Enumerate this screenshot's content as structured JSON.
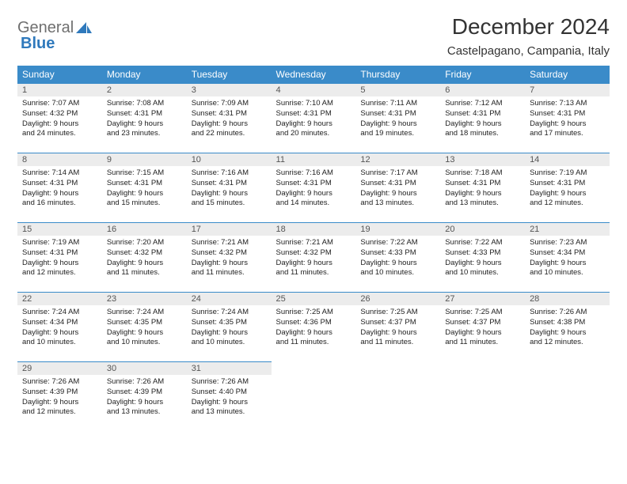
{
  "brand": {
    "part1": "General",
    "part2": "Blue"
  },
  "title": "December 2024",
  "location": "Castelpagano, Campania, Italy",
  "calendar": {
    "header_bg": "#3a8bc9",
    "header_fg": "#ffffff",
    "daynum_bg": "#ececec",
    "row_border": "#3a8bc9",
    "day_headers": [
      "Sunday",
      "Monday",
      "Tuesday",
      "Wednesday",
      "Thursday",
      "Friday",
      "Saturday"
    ],
    "weeks": [
      [
        {
          "n": "1",
          "sunrise": "Sunrise: 7:07 AM",
          "sunset": "Sunset: 4:32 PM",
          "day1": "Daylight: 9 hours",
          "day2": "and 24 minutes."
        },
        {
          "n": "2",
          "sunrise": "Sunrise: 7:08 AM",
          "sunset": "Sunset: 4:31 PM",
          "day1": "Daylight: 9 hours",
          "day2": "and 23 minutes."
        },
        {
          "n": "3",
          "sunrise": "Sunrise: 7:09 AM",
          "sunset": "Sunset: 4:31 PM",
          "day1": "Daylight: 9 hours",
          "day2": "and 22 minutes."
        },
        {
          "n": "4",
          "sunrise": "Sunrise: 7:10 AM",
          "sunset": "Sunset: 4:31 PM",
          "day1": "Daylight: 9 hours",
          "day2": "and 20 minutes."
        },
        {
          "n": "5",
          "sunrise": "Sunrise: 7:11 AM",
          "sunset": "Sunset: 4:31 PM",
          "day1": "Daylight: 9 hours",
          "day2": "and 19 minutes."
        },
        {
          "n": "6",
          "sunrise": "Sunrise: 7:12 AM",
          "sunset": "Sunset: 4:31 PM",
          "day1": "Daylight: 9 hours",
          "day2": "and 18 minutes."
        },
        {
          "n": "7",
          "sunrise": "Sunrise: 7:13 AM",
          "sunset": "Sunset: 4:31 PM",
          "day1": "Daylight: 9 hours",
          "day2": "and 17 minutes."
        }
      ],
      [
        {
          "n": "8",
          "sunrise": "Sunrise: 7:14 AM",
          "sunset": "Sunset: 4:31 PM",
          "day1": "Daylight: 9 hours",
          "day2": "and 16 minutes."
        },
        {
          "n": "9",
          "sunrise": "Sunrise: 7:15 AM",
          "sunset": "Sunset: 4:31 PM",
          "day1": "Daylight: 9 hours",
          "day2": "and 15 minutes."
        },
        {
          "n": "10",
          "sunrise": "Sunrise: 7:16 AM",
          "sunset": "Sunset: 4:31 PM",
          "day1": "Daylight: 9 hours",
          "day2": "and 15 minutes."
        },
        {
          "n": "11",
          "sunrise": "Sunrise: 7:16 AM",
          "sunset": "Sunset: 4:31 PM",
          "day1": "Daylight: 9 hours",
          "day2": "and 14 minutes."
        },
        {
          "n": "12",
          "sunrise": "Sunrise: 7:17 AM",
          "sunset": "Sunset: 4:31 PM",
          "day1": "Daylight: 9 hours",
          "day2": "and 13 minutes."
        },
        {
          "n": "13",
          "sunrise": "Sunrise: 7:18 AM",
          "sunset": "Sunset: 4:31 PM",
          "day1": "Daylight: 9 hours",
          "day2": "and 13 minutes."
        },
        {
          "n": "14",
          "sunrise": "Sunrise: 7:19 AM",
          "sunset": "Sunset: 4:31 PM",
          "day1": "Daylight: 9 hours",
          "day2": "and 12 minutes."
        }
      ],
      [
        {
          "n": "15",
          "sunrise": "Sunrise: 7:19 AM",
          "sunset": "Sunset: 4:31 PM",
          "day1": "Daylight: 9 hours",
          "day2": "and 12 minutes."
        },
        {
          "n": "16",
          "sunrise": "Sunrise: 7:20 AM",
          "sunset": "Sunset: 4:32 PM",
          "day1": "Daylight: 9 hours",
          "day2": "and 11 minutes."
        },
        {
          "n": "17",
          "sunrise": "Sunrise: 7:21 AM",
          "sunset": "Sunset: 4:32 PM",
          "day1": "Daylight: 9 hours",
          "day2": "and 11 minutes."
        },
        {
          "n": "18",
          "sunrise": "Sunrise: 7:21 AM",
          "sunset": "Sunset: 4:32 PM",
          "day1": "Daylight: 9 hours",
          "day2": "and 11 minutes."
        },
        {
          "n": "19",
          "sunrise": "Sunrise: 7:22 AM",
          "sunset": "Sunset: 4:33 PM",
          "day1": "Daylight: 9 hours",
          "day2": "and 10 minutes."
        },
        {
          "n": "20",
          "sunrise": "Sunrise: 7:22 AM",
          "sunset": "Sunset: 4:33 PM",
          "day1": "Daylight: 9 hours",
          "day2": "and 10 minutes."
        },
        {
          "n": "21",
          "sunrise": "Sunrise: 7:23 AM",
          "sunset": "Sunset: 4:34 PM",
          "day1": "Daylight: 9 hours",
          "day2": "and 10 minutes."
        }
      ],
      [
        {
          "n": "22",
          "sunrise": "Sunrise: 7:24 AM",
          "sunset": "Sunset: 4:34 PM",
          "day1": "Daylight: 9 hours",
          "day2": "and 10 minutes."
        },
        {
          "n": "23",
          "sunrise": "Sunrise: 7:24 AM",
          "sunset": "Sunset: 4:35 PM",
          "day1": "Daylight: 9 hours",
          "day2": "and 10 minutes."
        },
        {
          "n": "24",
          "sunrise": "Sunrise: 7:24 AM",
          "sunset": "Sunset: 4:35 PM",
          "day1": "Daylight: 9 hours",
          "day2": "and 10 minutes."
        },
        {
          "n": "25",
          "sunrise": "Sunrise: 7:25 AM",
          "sunset": "Sunset: 4:36 PM",
          "day1": "Daylight: 9 hours",
          "day2": "and 11 minutes."
        },
        {
          "n": "26",
          "sunrise": "Sunrise: 7:25 AM",
          "sunset": "Sunset: 4:37 PM",
          "day1": "Daylight: 9 hours",
          "day2": "and 11 minutes."
        },
        {
          "n": "27",
          "sunrise": "Sunrise: 7:25 AM",
          "sunset": "Sunset: 4:37 PM",
          "day1": "Daylight: 9 hours",
          "day2": "and 11 minutes."
        },
        {
          "n": "28",
          "sunrise": "Sunrise: 7:26 AM",
          "sunset": "Sunset: 4:38 PM",
          "day1": "Daylight: 9 hours",
          "day2": "and 12 minutes."
        }
      ],
      [
        {
          "n": "29",
          "sunrise": "Sunrise: 7:26 AM",
          "sunset": "Sunset: 4:39 PM",
          "day1": "Daylight: 9 hours",
          "day2": "and 12 minutes."
        },
        {
          "n": "30",
          "sunrise": "Sunrise: 7:26 AM",
          "sunset": "Sunset: 4:39 PM",
          "day1": "Daylight: 9 hours",
          "day2": "and 13 minutes."
        },
        {
          "n": "31",
          "sunrise": "Sunrise: 7:26 AM",
          "sunset": "Sunset: 4:40 PM",
          "day1": "Daylight: 9 hours",
          "day2": "and 13 minutes."
        },
        null,
        null,
        null,
        null
      ]
    ]
  }
}
